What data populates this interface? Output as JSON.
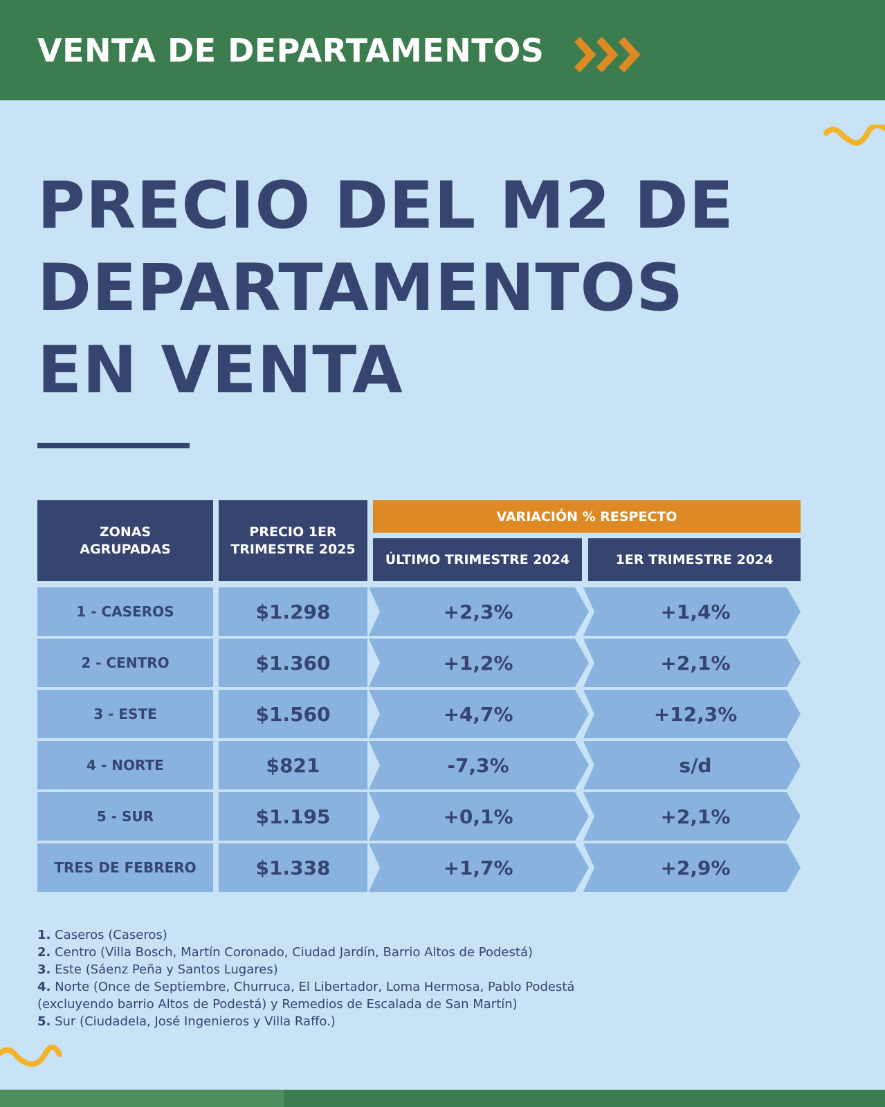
{
  "header": {
    "title": "VENTA DE DEPARTAMENTOS"
  },
  "title_lines": [
    "PRECIO DEL M2 DE",
    "DEPARTAMENTOS",
    "EN VENTA"
  ],
  "colors": {
    "background": "#c8e2f6",
    "header_green": "#3c7d50",
    "navy": "#354570",
    "orange": "#dd8a24",
    "cell_blue": "#8ab2df",
    "squiggle_yellow": "#f3b42c"
  },
  "table": {
    "headers": {
      "zonas": "ZONAS\nAGRUPADAS",
      "precio": "PRECIO 1ER\nTRIMESTRE 2025",
      "variacion": "VARIACIÓN % RESPECTO",
      "ultimo": "ÚLTIMO TRIMESTRE 2024",
      "primero": "1ER TRIMESTRE 2024"
    },
    "rows": [
      {
        "zona": "1 - CASEROS",
        "precio": "$1.298",
        "ultimo": "+2,3%",
        "primero": "+1,4%"
      },
      {
        "zona": "2 - CENTRO",
        "precio": "$1.360",
        "ultimo": "+1,2%",
        "primero": "+2,1%"
      },
      {
        "zona": "3 - ESTE",
        "precio": "$1.560",
        "ultimo": "+4,7%",
        "primero": "+12,3%"
      },
      {
        "zona": "4 - NORTE",
        "precio": "$821",
        "ultimo": "-7,3%",
        "primero": "s/d"
      },
      {
        "zona": "5 - SUR",
        "precio": "$1.195",
        "ultimo": "+0,1%",
        "primero": "+2,1%"
      },
      {
        "zona": "TRES DE FEBRERO",
        "precio": "$1.338",
        "ultimo": "+1,7%",
        "primero": "+2,9%"
      }
    ]
  },
  "notes": [
    {
      "num": "1.",
      "text": " Caseros (Caseros)"
    },
    {
      "num": "2.",
      "text": " Centro (Villa Bosch, Martín Coronado, Ciudad Jardín, Barrio Altos de Podestá)"
    },
    {
      "num": "3.",
      "text": " Este (Sáenz Peña y Santos Lugares)"
    },
    {
      "num": "4.",
      "text": " Norte (Once de Septiembre, Churruca, El Libertador, Loma Hermosa, Pablo Podestá"
    },
    {
      "num": "",
      "text": "(excluyendo barrio Altos de Podestá) y Remedios de Escalada de San Martín)"
    },
    {
      "num": "5.",
      "text": " Sur (Ciudadela, José Ingenieros y Villa Raffo.)"
    }
  ]
}
